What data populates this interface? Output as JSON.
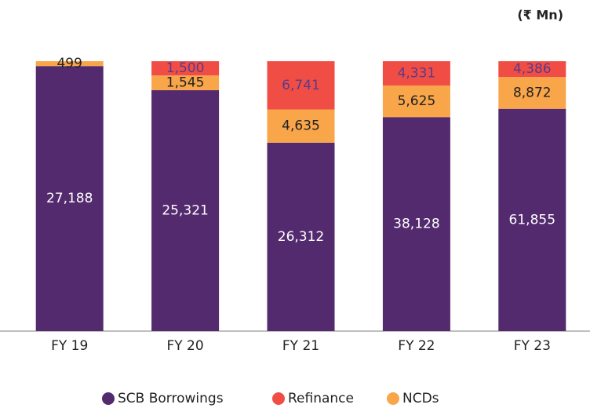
{
  "chart_data": {
    "type": "bar",
    "stacking": "percent",
    "unit": "(₹ Mn)",
    "categories": [
      "FY 19",
      "FY 20",
      "FY 21",
      "FY 22",
      "FY 23"
    ],
    "series": [
      {
        "name": "SCB Borrowings",
        "color": "#532a6e",
        "label_color": "#ffffff",
        "values": [
          27188,
          25321,
          26312,
          38128,
          61855
        ],
        "value_labels": [
          "27,188",
          "25,321",
          "26,312",
          "38,128",
          "61,855"
        ]
      },
      {
        "name": "Refinance",
        "color": "#f04e45",
        "label_color": "#5a3a8a",
        "values": [
          null,
          1500,
          6741,
          4331,
          4386
        ],
        "value_labels": [
          null,
          "1,500",
          "6,741",
          "4,331",
          "4,386"
        ]
      },
      {
        "name": "NCDs",
        "color": "#f9a54a",
        "label_color": "#222222",
        "values": [
          499,
          1545,
          4635,
          5625,
          8872
        ],
        "value_labels": [
          "499",
          "1,545",
          "4,635",
          "5,625",
          "8,872"
        ]
      }
    ]
  }
}
